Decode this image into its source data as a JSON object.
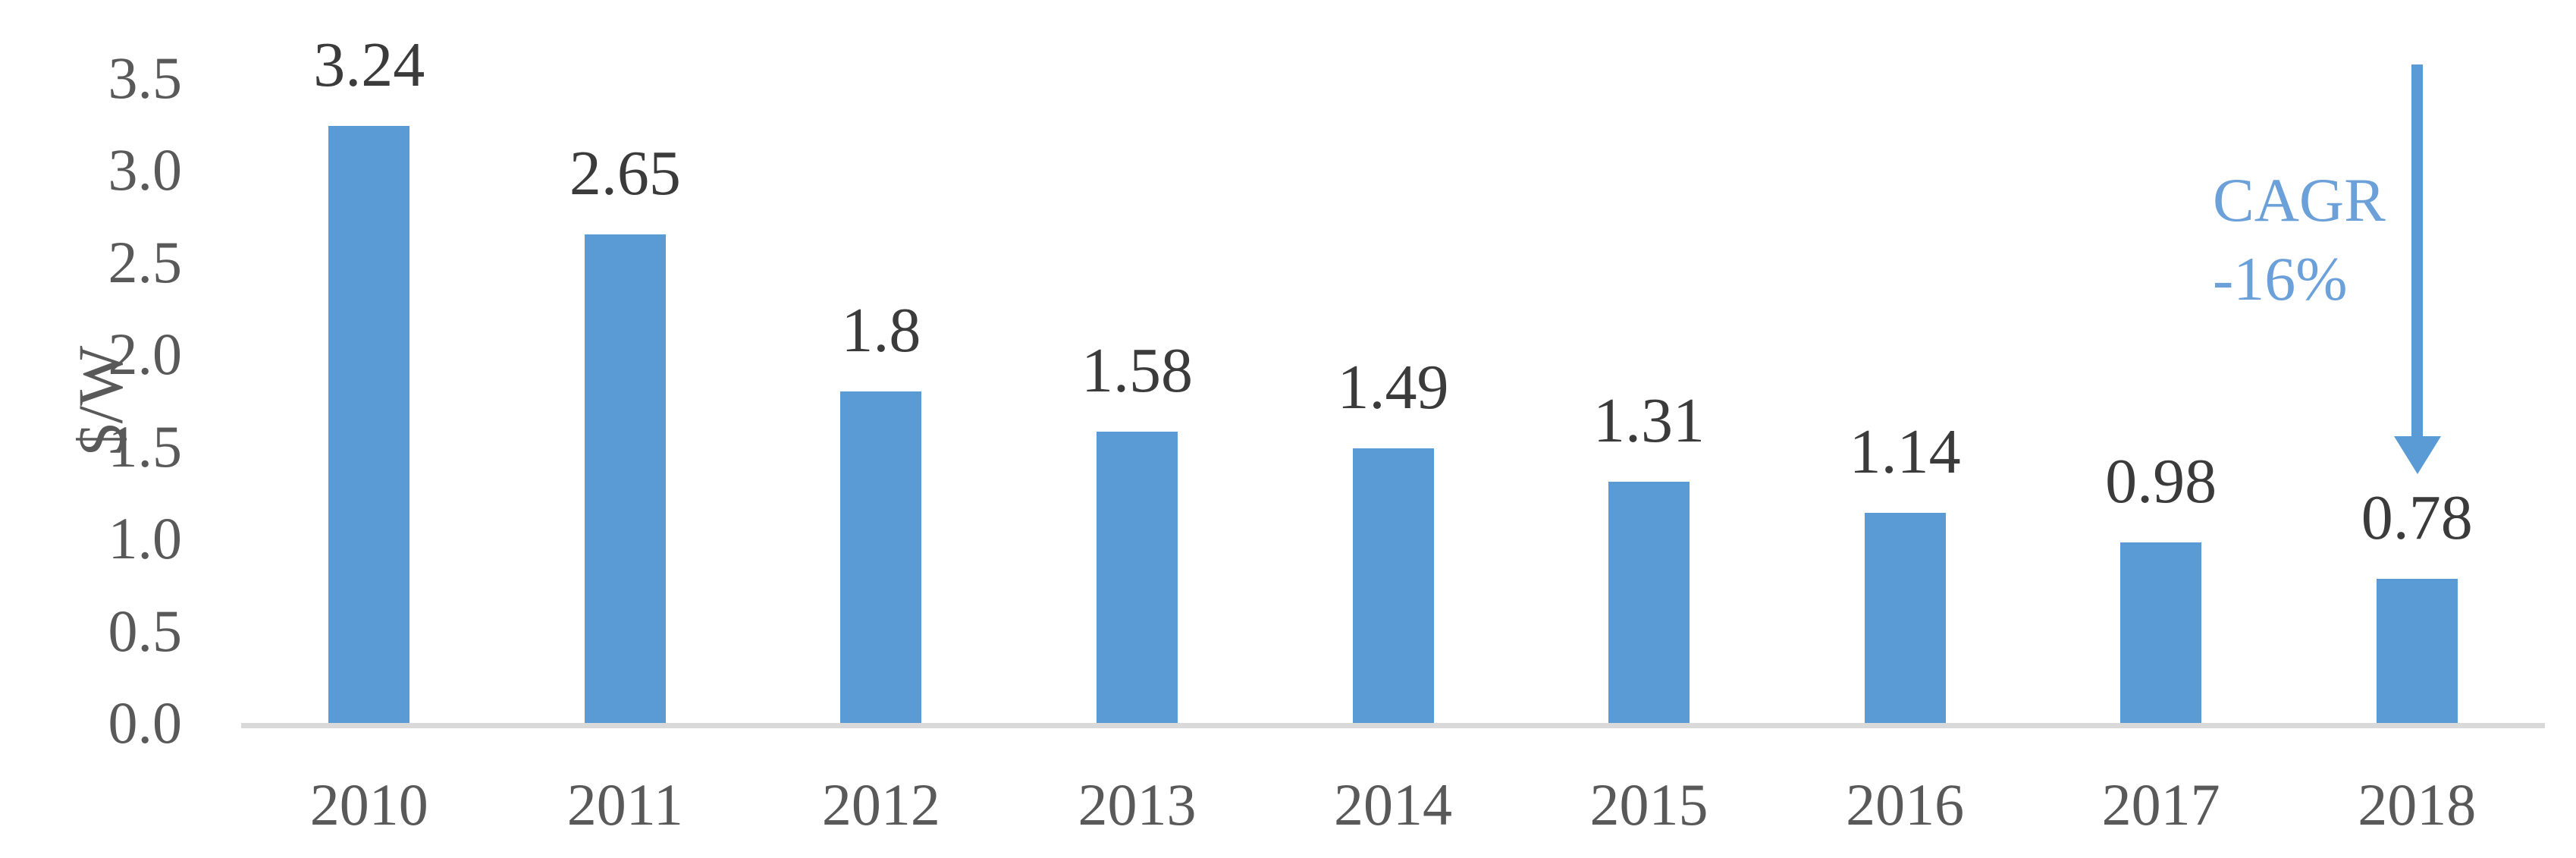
{
  "chart_data": {
    "type": "bar",
    "title": "",
    "categories": [
      "2010",
      "2011",
      "2012",
      "2013",
      "2014",
      "2015",
      "2016",
      "2017",
      "2018"
    ],
    "values": [
      3.24,
      2.65,
      1.8,
      1.58,
      1.49,
      1.31,
      1.14,
      0.98,
      0.78
    ],
    "data_labels": [
      "3.24",
      "2.65",
      "1.8",
      "1.58",
      "1.49",
      "1.31",
      "1.14",
      "0.98",
      "0.78"
    ],
    "xlabel": "",
    "ylabel": "$/W",
    "ylim": [
      0,
      3.5
    ],
    "yticks": [
      "0.0",
      "0.5",
      "1.0",
      "1.5",
      "2.0",
      "2.5",
      "3.0",
      "3.5"
    ],
    "grid": false,
    "legend": false,
    "bar_color": "#5b9bd5",
    "axis_line_color": "#d9d9d9",
    "tick_label_color": "#595959",
    "data_label_color": "#3b3b3b",
    "annotation": {
      "line1": "CAGR",
      "line2": "-16%",
      "text_color": "#6ba0d9",
      "arrow_direction": "down",
      "arrow_color": "#5b9bd5"
    }
  }
}
